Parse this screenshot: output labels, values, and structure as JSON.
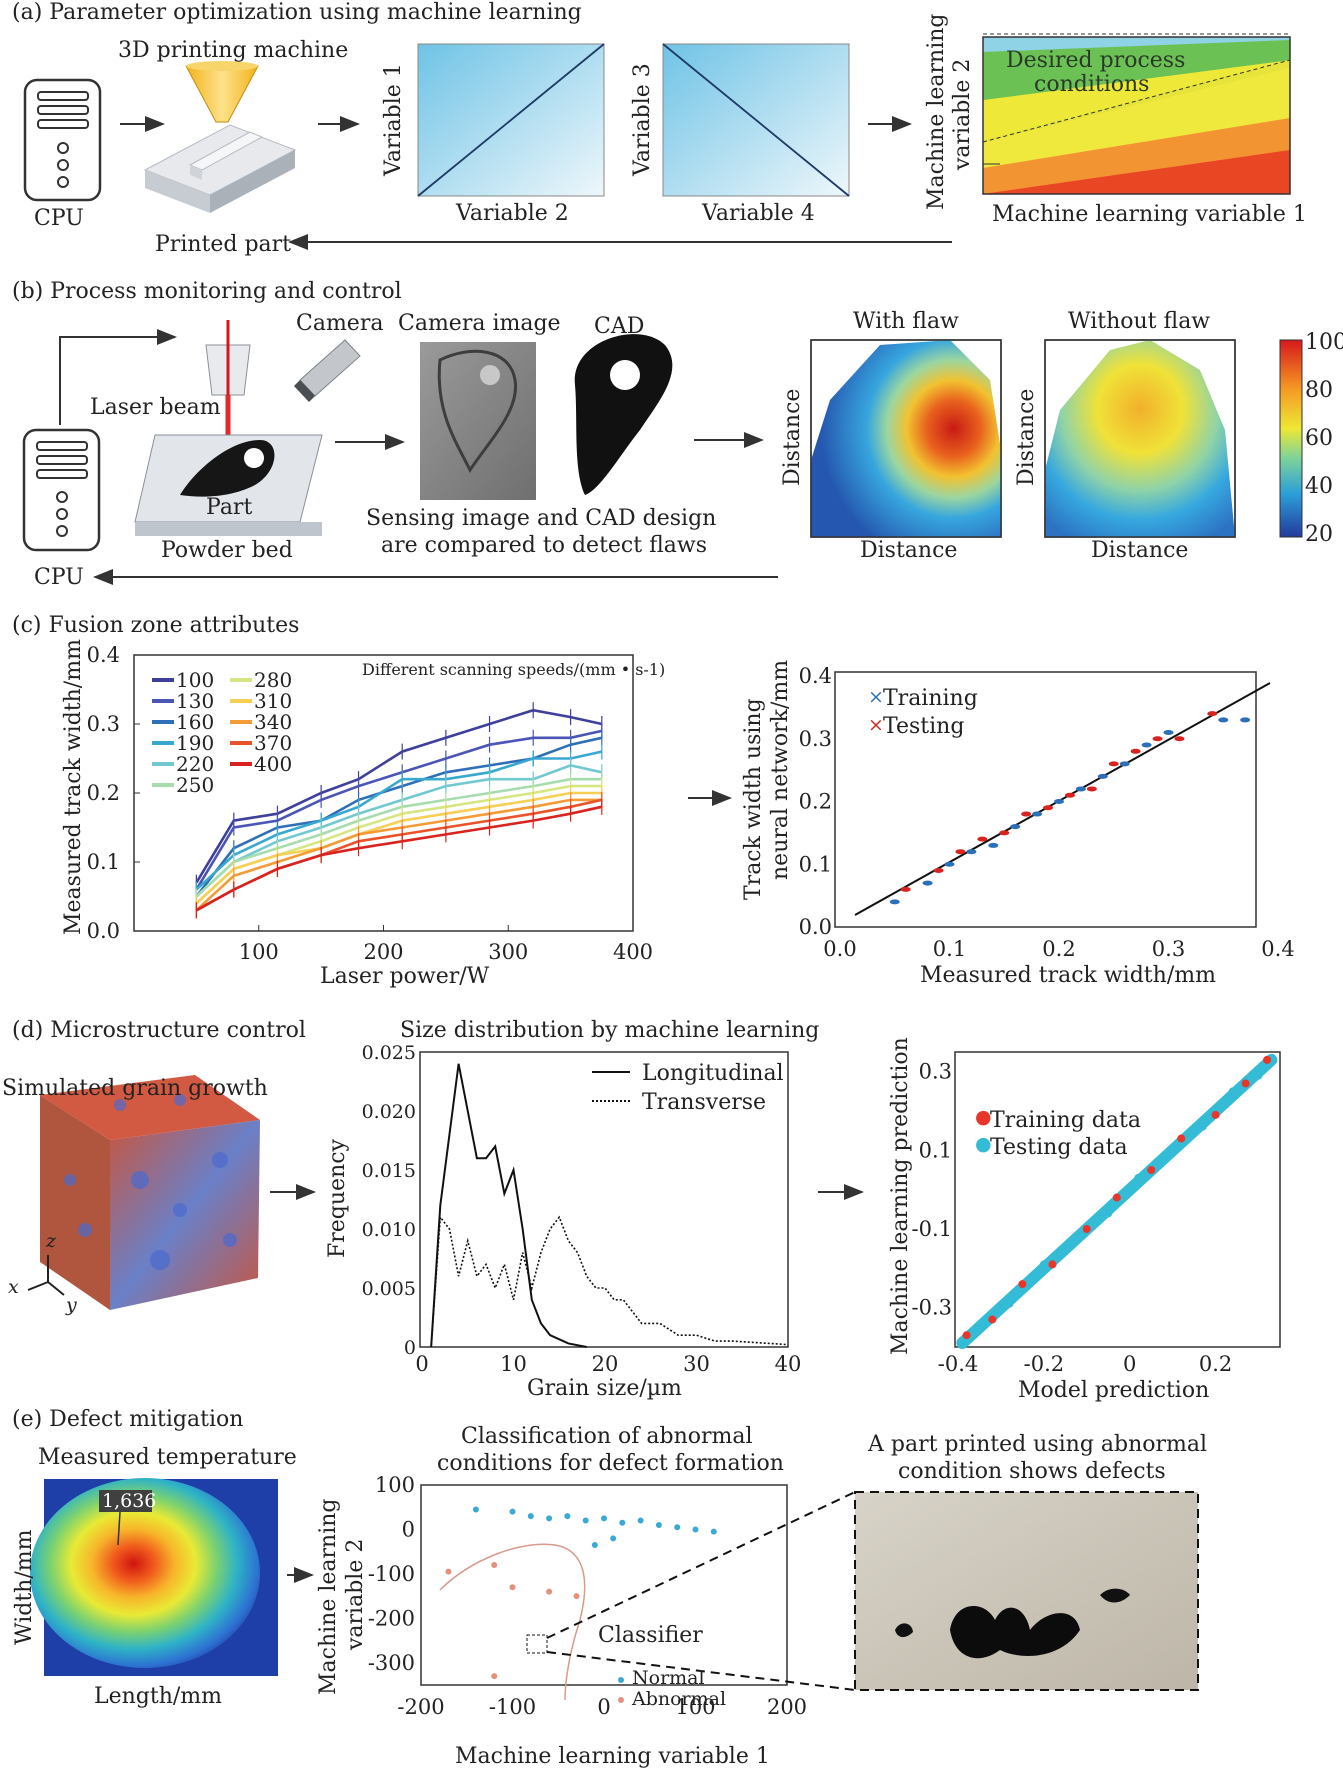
{
  "panel_a": {
    "title": "(a) Parameter optimization using machine learning",
    "machine_label": "3D printing machine",
    "cpu_label": "CPU",
    "printed_part_label": "Printed part",
    "plot1": {
      "ylabel": "Variable 1",
      "xlabel": "Variable 2"
    },
    "plot2": {
      "ylabel": "Variable 3",
      "xlabel": "Variable 4"
    },
    "ml_plot": {
      "ylabel_1": "Machine learning",
      "ylabel_2": "variable 2",
      "xlabel": "Machine learning variable 1",
      "region_1": "Desired process",
      "region_2": "conditions"
    }
  },
  "panel_b": {
    "title": "(b) Process monitoring and control",
    "laser_label": "Laser beam",
    "camera_label": "Camera",
    "camera_image_label": "Camera image",
    "cad_label": "CAD",
    "part_label": "Part",
    "powder_label": "Powder bed",
    "cpu_label": "CPU",
    "caption_1": "Sensing image and CAD design",
    "caption_2": "are compared to detect flaws",
    "with_flaw": "With flaw",
    "without_flaw": "Without flaw",
    "axis_label": "Distance",
    "colorbar_ticks": [
      "100",
      "80",
      "60",
      "40",
      "20"
    ]
  },
  "panel_c": {
    "title": "(c) Fusion zone attributes",
    "legend_title": "Different scanning speeds/(mm • s-1)",
    "speeds": [
      "100",
      "130",
      "160",
      "190",
      "220",
      "250",
      "280",
      "310",
      "340",
      "370",
      "400"
    ],
    "speed_colors": [
      "#3f3f9c",
      "#4a55b5",
      "#2f6fb7",
      "#38a8d0",
      "#72c8cf",
      "#a6dcae",
      "#d5e682",
      "#f6cf54",
      "#f49a36",
      "#e9532a",
      "#d8231f"
    ],
    "ylabel": "Measured track width/mm",
    "xlabel": "Laser power/W",
    "nn_ylabel_1": "Track width using",
    "nn_ylabel_2": "neural network/mm",
    "nn_xlabel": "Measured track width/mm",
    "nn_legend": [
      "Training",
      "Testing"
    ]
  },
  "panel_d": {
    "title": "(d) Microstructure control",
    "grain_label": "Simulated grain growth",
    "dist_title": "Size distribution by machine learning",
    "legend": [
      "Longitudinal",
      "Transverse"
    ],
    "ylabel": "Frequency",
    "xlabel": "Grain size/µm",
    "axes_labels": [
      "x",
      "y",
      "z"
    ],
    "pred_ylabel": "Machine learning prediction",
    "pred_xlabel": "Model prediction",
    "pred_legend": [
      "Training data",
      "Testing data"
    ]
  },
  "panel_e": {
    "title": "(e) Defect mitigation",
    "temp_label": "Measured temperature",
    "temp_value": "1,636",
    "temp_ylabel": "Width/mm",
    "temp_xlabel": "Length/mm",
    "class_title_1": "Classification of abnormal",
    "class_title_2": "conditions for defect formation",
    "class_ylabel_1": "Machine learning",
    "class_ylabel_2": "variable 2",
    "class_xlabel": "Machine learning variable 1",
    "classifier_label": "Classifier",
    "class_legend": [
      "Normal",
      "Abnormal"
    ],
    "defect_title_1": "A part printed using abnormal",
    "defect_title_2": "condition shows defects"
  },
  "chart_data": [
    {
      "type": "line",
      "title": "",
      "xlabel": "Laser power/W",
      "ylabel": "Measured track width/mm",
      "xlim": [
        0,
        400
      ],
      "ylim": [
        0.0,
        0.4
      ],
      "x": [
        50,
        80,
        115,
        150,
        180,
        215,
        250,
        285,
        320,
        350,
        375
      ],
      "series": [
        {
          "name": "100",
          "values": [
            0.07,
            0.16,
            0.17,
            0.2,
            0.22,
            0.26,
            0.28,
            0.3,
            0.32,
            0.31,
            0.3
          ]
        },
        {
          "name": "130",
          "values": [
            0.06,
            0.15,
            0.16,
            0.19,
            0.21,
            0.23,
            0.25,
            0.27,
            0.28,
            0.28,
            0.29
          ]
        },
        {
          "name": "160",
          "values": [
            0.05,
            0.12,
            0.15,
            0.16,
            0.19,
            0.21,
            0.23,
            0.24,
            0.25,
            0.27,
            0.28
          ]
        },
        {
          "name": "190",
          "values": [
            0.06,
            0.11,
            0.14,
            0.16,
            0.18,
            0.22,
            0.22,
            0.23,
            0.25,
            0.25,
            0.26
          ]
        },
        {
          "name": "220",
          "values": [
            0.05,
            0.1,
            0.13,
            0.15,
            0.17,
            0.19,
            0.21,
            0.22,
            0.22,
            0.24,
            0.23
          ]
        },
        {
          "name": "250",
          "values": [
            0.05,
            0.1,
            0.12,
            0.14,
            0.16,
            0.18,
            0.19,
            0.2,
            0.21,
            0.22,
            0.22
          ]
        },
        {
          "name": "280",
          "values": [
            0.04,
            0.09,
            0.11,
            0.13,
            0.15,
            0.17,
            0.18,
            0.19,
            0.2,
            0.21,
            0.21
          ]
        },
        {
          "name": "310",
          "values": [
            0.04,
            0.09,
            0.11,
            0.12,
            0.14,
            0.16,
            0.17,
            0.18,
            0.19,
            0.2,
            0.2
          ]
        },
        {
          "name": "340",
          "values": [
            0.03,
            0.08,
            0.1,
            0.12,
            0.14,
            0.15,
            0.16,
            0.17,
            0.18,
            0.19,
            0.19
          ]
        },
        {
          "name": "370",
          "values": [
            0.03,
            0.06,
            0.09,
            0.11,
            0.13,
            0.14,
            0.15,
            0.16,
            0.17,
            0.18,
            0.19
          ]
        },
        {
          "name": "400",
          "values": [
            0.03,
            0.06,
            0.09,
            0.11,
            0.12,
            0.13,
            0.14,
            0.15,
            0.16,
            0.17,
            0.18
          ]
        }
      ]
    },
    {
      "type": "scatter",
      "title": "",
      "xlabel": "Measured track width/mm",
      "ylabel": "Track width using neural network/mm",
      "xlim": [
        0.0,
        0.4
      ],
      "ylim": [
        0.0,
        0.4
      ],
      "series": [
        {
          "name": "Training",
          "x": [
            0.05,
            0.08,
            0.1,
            0.12,
            0.14,
            0.16,
            0.18,
            0.2,
            0.22,
            0.24,
            0.26,
            0.28,
            0.3,
            0.35,
            0.37
          ],
          "y": [
            0.04,
            0.07,
            0.1,
            0.12,
            0.13,
            0.16,
            0.18,
            0.2,
            0.22,
            0.24,
            0.26,
            0.29,
            0.31,
            0.33,
            0.33
          ]
        },
        {
          "name": "Testing",
          "x": [
            0.06,
            0.09,
            0.11,
            0.13,
            0.15,
            0.17,
            0.19,
            0.21,
            0.23,
            0.25,
            0.27,
            0.29,
            0.31,
            0.34
          ],
          "y": [
            0.06,
            0.09,
            0.12,
            0.14,
            0.15,
            0.18,
            0.19,
            0.21,
            0.22,
            0.26,
            0.28,
            0.3,
            0.3,
            0.34
          ]
        }
      ]
    },
    {
      "type": "line",
      "title": "Size distribution by machine learning",
      "xlabel": "Grain size/µm",
      "ylabel": "Frequency",
      "xlim": [
        0,
        40
      ],
      "ylim": [
        0,
        0.025
      ],
      "series": [
        {
          "name": "Longitudinal",
          "x": [
            1,
            2,
            4,
            6,
            7,
            8,
            9,
            10,
            11,
            12,
            13,
            14,
            16,
            18
          ],
          "y": [
            0,
            0.012,
            0.024,
            0.016,
            0.016,
            0.017,
            0.013,
            0.015,
            0.01,
            0.004,
            0.002,
            0.001,
            0.0003,
            0
          ]
        },
        {
          "name": "Transverse",
          "x": [
            1,
            2,
            3,
            4,
            5,
            6,
            7,
            8,
            9,
            10,
            11,
            12,
            13,
            14,
            15,
            16,
            17,
            18,
            19,
            20,
            21,
            22,
            24,
            26,
            28,
            30,
            32,
            34,
            36,
            38,
            40
          ],
          "y": [
            0,
            0.011,
            0.01,
            0.006,
            0.009,
            0.006,
            0.007,
            0.005,
            0.007,
            0.004,
            0.008,
            0.005,
            0.008,
            0.01,
            0.011,
            0.009,
            0.008,
            0.006,
            0.005,
            0.005,
            0.004,
            0.004,
            0.002,
            0.002,
            0.001,
            0.001,
            0.0005,
            0.0005,
            0.0004,
            0.0003,
            0.0002
          ]
        }
      ]
    },
    {
      "type": "scatter",
      "title": "",
      "xlabel": "Model prediction",
      "ylabel": "Machine learning prediction",
      "xlim": [
        -0.4,
        0.35
      ],
      "ylim": [
        -0.4,
        0.35
      ],
      "series": [
        {
          "name": "Training data",
          "x": [
            -0.38,
            -0.32,
            -0.25,
            -0.18,
            -0.1,
            -0.03,
            0.05,
            0.12,
            0.2,
            0.27,
            0.32
          ],
          "y": [
            -0.37,
            -0.33,
            -0.24,
            -0.19,
            -0.1,
            -0.02,
            0.05,
            0.13,
            0.19,
            0.27,
            0.33
          ]
        },
        {
          "name": "Testing data",
          "x": [
            -0.35,
            -0.28,
            -0.2,
            -0.12,
            -0.05,
            0.02,
            0.1,
            0.17,
            0.24,
            0.3
          ],
          "y": [
            -0.35,
            -0.29,
            -0.19,
            -0.12,
            -0.06,
            0.03,
            0.1,
            0.16,
            0.25,
            0.29
          ]
        }
      ]
    },
    {
      "type": "scatter",
      "title": "Classification of abnormal conditions for defect formation",
      "xlabel": "Machine learning variable 1",
      "ylabel": "Machine learning variable 2",
      "xlim": [
        -200,
        200
      ],
      "ylim": [
        -350,
        100
      ],
      "series": [
        {
          "name": "Normal",
          "x": [
            -140,
            -100,
            -80,
            -60,
            -40,
            -20,
            0,
            20,
            40,
            60,
            80,
            100,
            120,
            -10,
            10
          ],
          "y": [
            45,
            40,
            30,
            25,
            30,
            20,
            25,
            15,
            20,
            10,
            5,
            0,
            -5,
            -35,
            -20
          ]
        },
        {
          "name": "Abnormal",
          "x": [
            -170,
            -120,
            -100,
            -60,
            -30,
            -120
          ],
          "y": [
            -95,
            -80,
            -130,
            -140,
            -150,
            -330
          ]
        }
      ]
    }
  ]
}
